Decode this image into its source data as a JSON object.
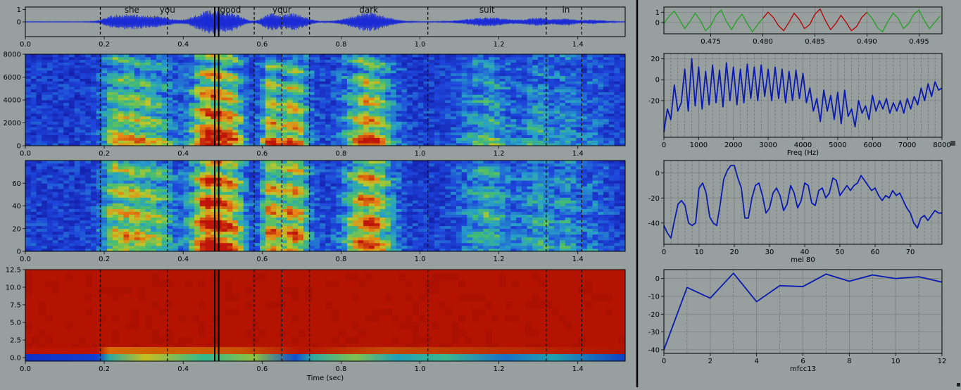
{
  "colors": {
    "background": "#97a09e",
    "waveform": "#1a2bd6",
    "panel_line": "#0a1ab0",
    "segment_red": "#b50000",
    "segment_green": "#22a022",
    "divider": "#000000"
  },
  "left": {
    "words": [
      "she",
      "you",
      "good",
      "your",
      "dark",
      "suit",
      "in"
    ],
    "word_times": [
      0.27,
      0.36,
      0.52,
      0.65,
      0.87,
      1.17,
      1.37
    ],
    "boundaries": [
      0.19,
      0.36,
      0.58,
      0.65,
      0.72,
      1.02,
      1.32,
      1.41
    ],
    "selection": [
      0.48,
      0.49
    ],
    "xlim": [
      0,
      1.52
    ],
    "x_ticks": [
      "0.0",
      "0.2",
      "0.4",
      "0.6",
      "0.8",
      "1.0",
      "1.2",
      "1.4"
    ],
    "x_tick_values": [
      0,
      0.2,
      0.4,
      0.6,
      0.8,
      1.0,
      1.2,
      1.4
    ],
    "waveform": {
      "y_ticks": [
        "0",
        "1"
      ],
      "y_tick_values": [
        0,
        1
      ],
      "ylim": [
        -1.2,
        1.2
      ]
    },
    "spectrogram": {
      "y_ticks": [
        "0",
        "2000",
        "4000",
        "6000",
        "8000"
      ],
      "y_tick_values": [
        0,
        2000,
        4000,
        6000,
        8000
      ],
      "ylim": [
        0,
        8000
      ]
    },
    "mel": {
      "y_ticks": [
        "0",
        "20",
        "40",
        "60"
      ],
      "y_tick_values": [
        0,
        20,
        40,
        60
      ],
      "ylim": [
        0,
        80
      ]
    },
    "mfcc": {
      "y_ticks": [
        "0.0",
        "2.5",
        "5.0",
        "7.5",
        "10.0",
        "12.5"
      ],
      "y_tick_values": [
        0,
        2.5,
        5,
        7.5,
        10,
        12.5
      ],
      "ylim": [
        -0.5,
        12.5
      ],
      "xlabel": "Time (sec)"
    }
  },
  "chart_data": [
    {
      "type": "line",
      "panel": "waveform-zoom",
      "x_ticks": [
        "0.475",
        "0.480",
        "0.485",
        "0.490",
        "0.495"
      ],
      "x_tick_values": [
        0.475,
        0.48,
        0.485,
        0.49,
        0.495
      ],
      "y_ticks": [
        "0",
        "1"
      ],
      "y_tick_values": [
        0,
        1
      ],
      "xlim": [
        0.4705,
        0.4972
      ],
      "ylim": [
        -1.1,
        1.5
      ],
      "highlight": [
        0.48,
        0.49
      ],
      "x": [
        0.4705,
        0.471,
        0.4715,
        0.472,
        0.4725,
        0.473,
        0.4735,
        0.474,
        0.4745,
        0.475,
        0.4755,
        0.476,
        0.4765,
        0.477,
        0.4775,
        0.478,
        0.4785,
        0.479,
        0.4795,
        0.48,
        0.4805,
        0.481,
        0.4815,
        0.482,
        0.4825,
        0.483,
        0.4835,
        0.484,
        0.4845,
        0.485,
        0.4855,
        0.486,
        0.4865,
        0.487,
        0.4875,
        0.488,
        0.4885,
        0.489,
        0.4895,
        0.49,
        0.4905,
        0.491,
        0.4915,
        0.492,
        0.4925,
        0.493,
        0.4935,
        0.494,
        0.4945,
        0.495,
        0.4955,
        0.496,
        0.4965,
        0.497
      ],
      "y": [
        -0.1,
        0.6,
        1.1,
        0.3,
        -0.6,
        0.1,
        0.9,
        0.2,
        -0.8,
        -0.3,
        0.7,
        1.2,
        0.1,
        -0.7,
        0.2,
        0.8,
        -0.1,
        -0.9,
        -0.2,
        0.4,
        1.0,
        0.5,
        -0.3,
        -0.8,
        0.0,
        0.9,
        0.3,
        -0.6,
        -0.2,
        0.8,
        1.3,
        0.2,
        -0.7,
        -0.1,
        0.7,
        0.0,
        -0.8,
        -0.4,
        0.5,
        1.0,
        0.4,
        -0.5,
        -0.9,
        0.1,
        0.9,
        0.4,
        -0.6,
        -0.1,
        0.8,
        1.2,
        0.2,
        -0.6,
        0.0,
        0.6
      ]
    },
    {
      "type": "line",
      "panel": "spectrum",
      "xlabel": "Freq (Hz)",
      "x_ticks": [
        "0",
        "1000",
        "2000",
        "3000",
        "4000",
        "5000",
        "6000",
        "7000",
        "8000"
      ],
      "x_tick_values": [
        0,
        1000,
        2000,
        3000,
        4000,
        5000,
        6000,
        7000,
        8000
      ],
      "y_ticks": [
        "-20",
        "0",
        "20"
      ],
      "y_tick_values": [
        -20,
        0,
        20
      ],
      "xlim": [
        0,
        8000
      ],
      "ylim": [
        -55,
        25
      ],
      "x": [
        0,
        100,
        200,
        300,
        400,
        500,
        600,
        700,
        800,
        900,
        1000,
        1100,
        1200,
        1300,
        1400,
        1500,
        1600,
        1700,
        1800,
        1900,
        2000,
        2100,
        2200,
        2300,
        2400,
        2500,
        2600,
        2700,
        2800,
        2900,
        3000,
        3100,
        3200,
        3300,
        3400,
        3500,
        3600,
        3700,
        3800,
        3900,
        4000,
        4100,
        4200,
        4300,
        4400,
        4500,
        4600,
        4700,
        4800,
        4900,
        5000,
        5100,
        5200,
        5300,
        5400,
        5500,
        5600,
        5700,
        5800,
        5900,
        6000,
        6100,
        6200,
        6300,
        6400,
        6500,
        6600,
        6700,
        6800,
        6900,
        7000,
        7100,
        7200,
        7300,
        7400,
        7500,
        7600,
        7700,
        7800,
        7900,
        8000
      ],
      "y": [
        -50,
        -28,
        -38,
        -5,
        -30,
        -22,
        10,
        -30,
        20,
        -25,
        12,
        -28,
        8,
        -24,
        14,
        -22,
        9,
        -26,
        16,
        -20,
        12,
        -24,
        10,
        -22,
        15,
        -18,
        12,
        -20,
        14,
        -16,
        10,
        -20,
        12,
        -18,
        10,
        -22,
        8,
        -20,
        9,
        -18,
        6,
        -22,
        -8,
        -30,
        -18,
        -40,
        -10,
        -30,
        -15,
        -38,
        -12,
        -42,
        -10,
        -35,
        -28,
        -45,
        -20,
        -32,
        -25,
        -38,
        -15,
        -30,
        -20,
        -28,
        -18,
        -32,
        -22,
        -30,
        -20,
        -32,
        -18,
        -28,
        -16,
        -24,
        -8,
        -20,
        -4,
        -16,
        -2,
        -10,
        -8
      ]
    },
    {
      "type": "line",
      "panel": "mel-slice",
      "xlabel": "mel 80",
      "x_ticks": [
        "0",
        "10",
        "20",
        "30",
        "40",
        "50",
        "60",
        "70"
      ],
      "x_tick_values": [
        0,
        10,
        20,
        30,
        40,
        50,
        60,
        70
      ],
      "y_ticks": [
        "0",
        "-20",
        "-40"
      ],
      "y_tick_values": [
        0,
        -20,
        -40
      ],
      "xlim": [
        0,
        79
      ],
      "ylim": [
        -57,
        10
      ],
      "x": [
        0,
        1,
        2,
        3,
        4,
        5,
        6,
        7,
        8,
        9,
        10,
        11,
        12,
        13,
        14,
        15,
        16,
        17,
        18,
        19,
        20,
        21,
        22,
        23,
        24,
        25,
        26,
        27,
        28,
        29,
        30,
        31,
        32,
        33,
        34,
        35,
        36,
        37,
        38,
        39,
        40,
        41,
        42,
        43,
        44,
        45,
        46,
        47,
        48,
        49,
        50,
        51,
        52,
        53,
        54,
        55,
        56,
        57,
        58,
        59,
        60,
        61,
        62,
        63,
        64,
        65,
        66,
        67,
        68,
        69,
        70,
        71,
        72,
        73,
        74,
        75,
        76,
        77,
        78,
        79
      ],
      "y": [
        -42,
        -48,
        -52,
        -38,
        -25,
        -22,
        -26,
        -40,
        -42,
        -40,
        -12,
        -8,
        -16,
        -35,
        -40,
        -42,
        -25,
        -5,
        2,
        6,
        6,
        -4,
        -12,
        -36,
        -36,
        -20,
        -10,
        -8,
        -18,
        -32,
        -28,
        -16,
        -12,
        -18,
        -30,
        -25,
        -10,
        -16,
        -28,
        -22,
        -8,
        -10,
        -24,
        -26,
        -14,
        -12,
        -20,
        -16,
        -4,
        -6,
        -18,
        -14,
        -10,
        -14,
        -10,
        -8,
        -2,
        -6,
        -10,
        -14,
        -12,
        -18,
        -22,
        -18,
        -20,
        -14,
        -18,
        -16,
        -22,
        -28,
        -32,
        -40,
        -44,
        -36,
        -34,
        -38,
        -34,
        -30,
        -32,
        -32
      ]
    },
    {
      "type": "line",
      "panel": "mfcc-slice",
      "xlabel": "mfcc13",
      "x_ticks": [
        "0",
        "2",
        "4",
        "6",
        "8",
        "10",
        "12"
      ],
      "x_tick_values": [
        0,
        2,
        4,
        6,
        8,
        10,
        12
      ],
      "y_ticks": [
        "0",
        "-10",
        "-20",
        "-30",
        "-40"
      ],
      "y_tick_values": [
        0,
        -10,
        -20,
        -30,
        -40
      ],
      "xlim": [
        0,
        12
      ],
      "ylim": [
        -42,
        5
      ],
      "x": [
        0,
        1,
        2,
        3,
        4,
        5,
        6,
        7,
        8,
        9,
        10,
        11,
        12
      ],
      "y": [
        -40,
        -5,
        -11,
        3,
        -13,
        -4,
        -4.5,
        2.5,
        -1.5,
        2,
        0,
        1,
        -2
      ]
    }
  ]
}
